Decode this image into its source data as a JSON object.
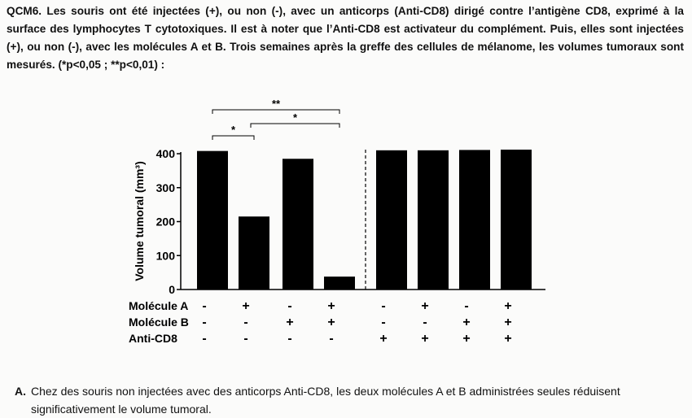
{
  "question": {
    "text": "QCM6. Les souris ont été injectées (+), ou non (-), avec un anticorps (Anti-CD8) dirigé contre l’antigène CD8, exprimé à la surface des lymphocytes T cytotoxiques. Il est à noter que l’Anti-CD8 est activateur du complément. Puis, elles sont injectées (+), ou non (-), avec les molécules A et B. Trois semaines après la greffe des cellules de mélanome, les volumes tumoraux sont mesurés. (*p<0,05 ; **p<0,01) :"
  },
  "chart_data": {
    "type": "bar",
    "ylabel": "Volume tumoral (mm³)",
    "ylim": [
      0,
      400
    ],
    "yticks": [
      "0",
      "100",
      "200",
      "300",
      "400"
    ],
    "values": [
      408,
      215,
      385,
      38,
      410,
      410,
      411,
      412
    ],
    "bar_color": "#000000",
    "condition_rows": [
      {
        "label": "Molécule A",
        "values": [
          "-",
          "+",
          "-",
          "+",
          "-",
          "+",
          "-",
          "+"
        ]
      },
      {
        "label": "Molécule B",
        "values": [
          "-",
          "-",
          "+",
          "+",
          "-",
          "-",
          "+",
          "+"
        ]
      },
      {
        "label": "Anti-CD8",
        "values": [
          "-",
          "-",
          "-",
          "-",
          "+",
          "+",
          "+",
          "+"
        ]
      }
    ],
    "separator_after_bar": 4,
    "significance": [
      {
        "from": 1,
        "to": 4,
        "label": "**"
      },
      {
        "from": 2,
        "to": 4,
        "label": "*"
      },
      {
        "from": 1,
        "to": 2,
        "label": "*"
      }
    ]
  },
  "options": [
    {
      "letter": "A.",
      "text": "Chez des souris non injectées avec des anticorps Anti-CD8, les deux molécules A et B administrées seules réduisent significativement le volume tumoral."
    }
  ]
}
